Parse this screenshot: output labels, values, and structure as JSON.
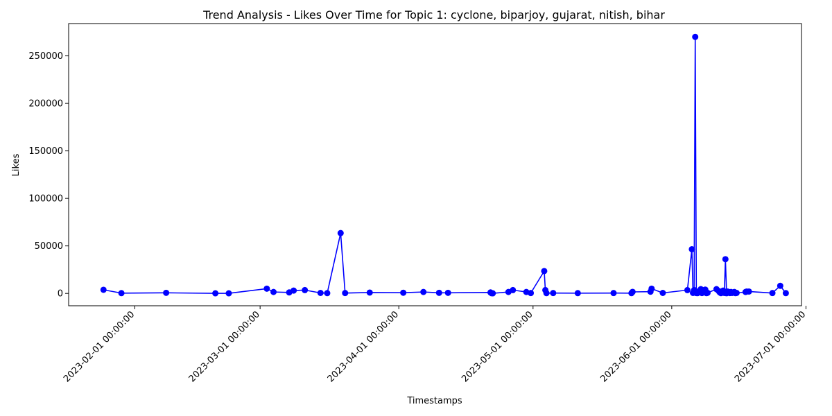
{
  "chart_data": {
    "type": "line",
    "title": "Trend Analysis - Likes Over Time for Topic 1: cyclone, biparjoy, gujarat, nitish, bihar",
    "xlabel": "Timestamps",
    "ylabel": "Likes",
    "xlim": [
      "2023-01-17 05:00:00",
      "2023-06-30 00:00:00"
    ],
    "ylim": [
      -13000,
      284000
    ],
    "x_ticks": [
      "2023-02-01 00:00:00",
      "2023-03-01 00:00:00",
      "2023-04-01 00:00:00",
      "2023-05-01 00:00:00",
      "2023-06-01 00:00:00",
      "2023-07-01 00:00:00"
    ],
    "y_ticks": [
      0,
      50000,
      100000,
      150000,
      200000,
      250000
    ],
    "grid": false,
    "colors": {
      "series": "#0000ff"
    },
    "series": [
      {
        "x": [
          "2023-01-25 00:00:00",
          "2023-01-29 00:00:00",
          "2023-02-08 00:00:00",
          "2023-02-19 00:00:00",
          "2023-02-22 00:00:00",
          "2023-03-02 12:00:00",
          "2023-03-04 00:00:00",
          "2023-03-07 12:00:00",
          "2023-03-08 12:00:00",
          "2023-03-11 00:00:00",
          "2023-03-14 12:00:00",
          "2023-03-16 00:00:00",
          "2023-03-19 00:00:00",
          "2023-03-20 00:00:00",
          "2023-03-25 12:00:00",
          "2023-04-02 00:00:00",
          "2023-04-06 12:00:00",
          "2023-04-10 00:00:00",
          "2023-04-12 00:00:00",
          "2023-04-21 12:00:00",
          "2023-04-21 18:00:00",
          "2023-04-22 00:00:00",
          "2023-04-25 12:00:00",
          "2023-04-26 12:00:00",
          "2023-04-29 12:00:00",
          "2023-04-30 12:00:00",
          "2023-05-03 12:00:00",
          "2023-05-03 18:00:00",
          "2023-05-04 00:00:00",
          "2023-05-05 12:00:00",
          "2023-05-11 00:00:00",
          "2023-05-19 00:00:00",
          "2023-05-23 00:00:00",
          "2023-05-23 06:00:00",
          "2023-05-27 06:00:00",
          "2023-05-27 12:00:00",
          "2023-05-30 00:00:00",
          "2023-06-04 12:00:00",
          "2023-06-05 12:00:00",
          "2023-06-05 18:00:00",
          "2023-06-06 00:00:00",
          "2023-06-06 06:00:00",
          "2023-06-06 12:00:00",
          "2023-06-06 18:00:00",
          "2023-06-07 06:00:00",
          "2023-06-07 12:00:00",
          "2023-06-07 18:00:00",
          "2023-06-08 00:00:00",
          "2023-06-08 06:00:00",
          "2023-06-08 12:00:00",
          "2023-06-08 18:00:00",
          "2023-06-09 00:00:00",
          "2023-06-11 00:00:00",
          "2023-06-11 12:00:00",
          "2023-06-11 18:00:00",
          "2023-06-12 00:00:00",
          "2023-06-12 06:00:00",
          "2023-06-12 12:00:00",
          "2023-06-12 18:00:00",
          "2023-06-13 00:00:00",
          "2023-06-13 06:00:00",
          "2023-06-13 12:00:00",
          "2023-06-13 18:00:00",
          "2023-06-14 00:00:00",
          "2023-06-14 06:00:00",
          "2023-06-14 12:00:00",
          "2023-06-14 18:00:00",
          "2023-06-15 00:00:00",
          "2023-06-15 06:00:00",
          "2023-06-15 12:00:00",
          "2023-06-17 12:00:00",
          "2023-06-17 18:00:00",
          "2023-06-18 06:00:00",
          "2023-06-23 12:00:00",
          "2023-06-25 06:00:00",
          "2023-06-26 12:00:00"
        ],
        "values": [
          3800,
          300,
          600,
          100,
          100,
          5000,
          1500,
          1000,
          3000,
          3500,
          500,
          300,
          63500,
          400,
          900,
          700,
          1500,
          600,
          600,
          1000,
          200,
          100,
          1500,
          3500,
          1500,
          400,
          23500,
          3500,
          300,
          400,
          300,
          400,
          300,
          1600,
          1800,
          5000,
          500,
          3500,
          46500,
          500,
          3500,
          270000,
          400,
          300,
          3000,
          4500,
          400,
          1500,
          3500,
          4000,
          300,
          600,
          4500,
          2500,
          1000,
          300,
          1500,
          3000,
          500,
          36000,
          200,
          2000,
          1000,
          400,
          1500,
          500,
          1000,
          1500,
          300,
          500,
          1500,
          2000,
          2000,
          400,
          8000,
          300
        ]
      }
    ]
  }
}
